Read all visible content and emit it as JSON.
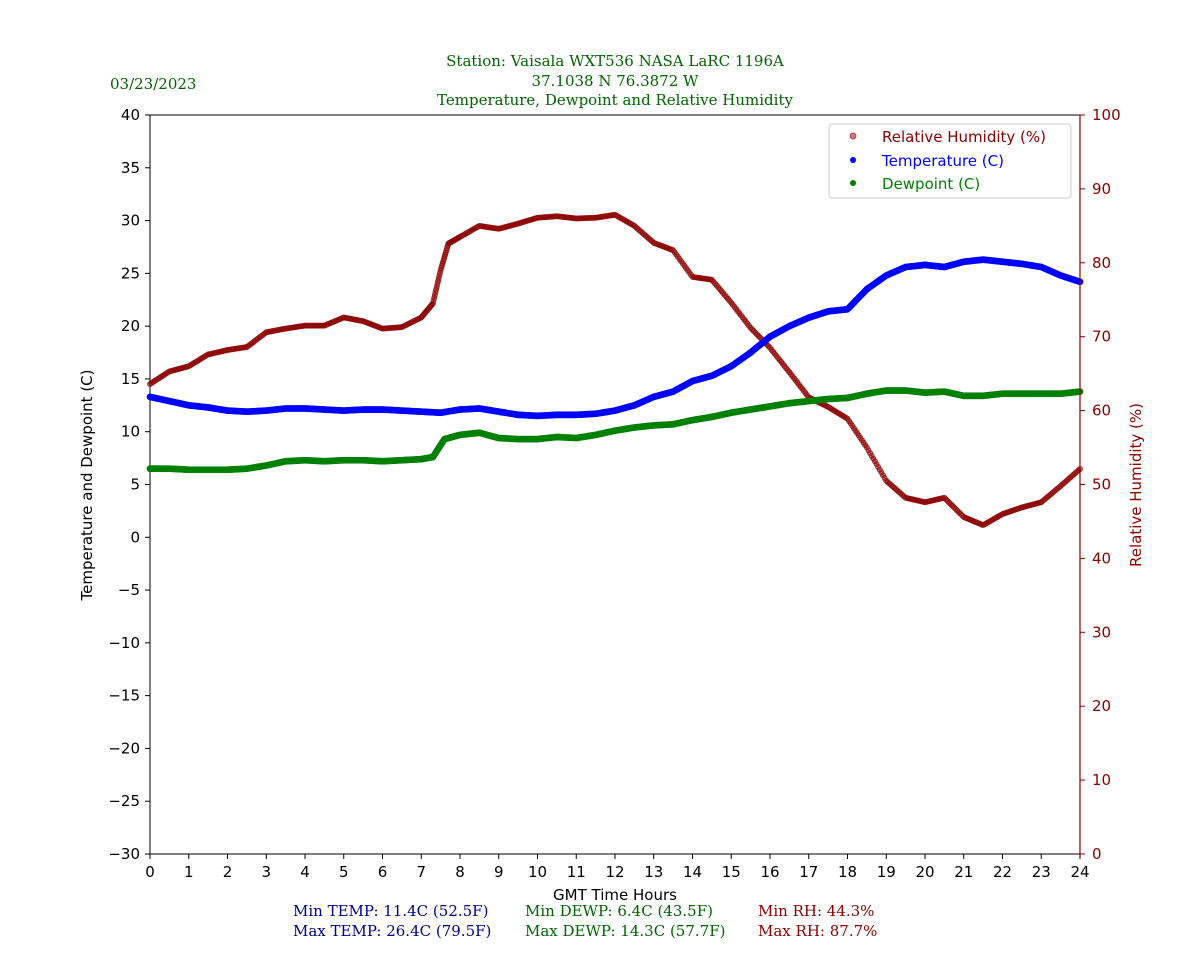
{
  "chart_data": {
    "type": "scatter",
    "date": "03/23/2023",
    "title_lines": [
      "Station:  Vaisala WXT536  NASA LaRC 1196A",
      "37.1038 N 76.3872 W",
      "Temperature, Dewpoint and Relative Humidity"
    ],
    "xlabel": "GMT Time Hours",
    "ylabel_left": "Temperature and Dewpoint (C)",
    "ylabel_right": "Relative Humidity (%)",
    "xlim": [
      0,
      24
    ],
    "ylim_left": [
      -30,
      40
    ],
    "ylim_right": [
      0,
      100
    ],
    "x_ticks": [
      0,
      1,
      2,
      3,
      4,
      5,
      6,
      7,
      8,
      9,
      10,
      11,
      12,
      13,
      14,
      15,
      16,
      17,
      18,
      19,
      20,
      21,
      22,
      23,
      24
    ],
    "y_ticks_left": [
      40,
      35,
      30,
      25,
      20,
      15,
      10,
      5,
      0,
      -5,
      -10,
      -15,
      -20,
      -25,
      -30
    ],
    "y_ticks_left_labels": [
      "40",
      "35",
      "30",
      "25",
      "20",
      "15",
      "10",
      "5",
      "0",
      "−5",
      "−10",
      "−15",
      "−20",
      "−25",
      "−30"
    ],
    "y_ticks_right": [
      100,
      90,
      80,
      70,
      60,
      50,
      40,
      30,
      20,
      10,
      0
    ],
    "legend": {
      "position": "top-right",
      "entries": [
        {
          "label": "Relative Humidity (%)",
          "color": "#8b0000"
        },
        {
          "label": "Temperature (C)",
          "color": "#0000ff"
        },
        {
          "label": "Dewpoint (C)",
          "color": "#008000"
        }
      ]
    },
    "series": [
      {
        "name": "Temperature (C)",
        "axis": "left",
        "color": "#0000ff",
        "points": [
          [
            0,
            13.3
          ],
          [
            0.5,
            12.9
          ],
          [
            1,
            12.5
          ],
          [
            1.5,
            12.3
          ],
          [
            2,
            12.0
          ],
          [
            2.5,
            11.9
          ],
          [
            3,
            12.0
          ],
          [
            3.5,
            12.2
          ],
          [
            4,
            12.2
          ],
          [
            4.5,
            12.1
          ],
          [
            5,
            12.0
          ],
          [
            5.5,
            12.1
          ],
          [
            6,
            12.1
          ],
          [
            6.5,
            12.0
          ],
          [
            7,
            11.9
          ],
          [
            7.5,
            11.8
          ],
          [
            8,
            12.1
          ],
          [
            8.5,
            12.2
          ],
          [
            9,
            11.9
          ],
          [
            9.5,
            11.6
          ],
          [
            10,
            11.5
          ],
          [
            10.5,
            11.6
          ],
          [
            11,
            11.6
          ],
          [
            11.5,
            11.7
          ],
          [
            12,
            12.0
          ],
          [
            12.5,
            12.5
          ],
          [
            13,
            13.3
          ],
          [
            13.5,
            13.8
          ],
          [
            14,
            14.8
          ],
          [
            14.5,
            15.3
          ],
          [
            15,
            16.2
          ],
          [
            15.5,
            17.5
          ],
          [
            16,
            19.0
          ],
          [
            16.5,
            20.0
          ],
          [
            17,
            20.8
          ],
          [
            17.5,
            21.4
          ],
          [
            18,
            21.6
          ],
          [
            18.5,
            23.5
          ],
          [
            19,
            24.8
          ],
          [
            19.5,
            25.6
          ],
          [
            20,
            25.8
          ],
          [
            20.5,
            25.6
          ],
          [
            21,
            26.1
          ],
          [
            21.5,
            26.3
          ],
          [
            22,
            26.1
          ],
          [
            22.5,
            25.9
          ],
          [
            23,
            25.6
          ],
          [
            23.5,
            24.8
          ],
          [
            24,
            24.2
          ]
        ]
      },
      {
        "name": "Dewpoint (C)",
        "axis": "left",
        "color": "#008000",
        "points": [
          [
            0,
            6.5
          ],
          [
            0.5,
            6.5
          ],
          [
            1,
            6.4
          ],
          [
            1.5,
            6.4
          ],
          [
            2,
            6.4
          ],
          [
            2.5,
            6.5
          ],
          [
            3,
            6.8
          ],
          [
            3.5,
            7.2
          ],
          [
            4,
            7.3
          ],
          [
            4.5,
            7.2
          ],
          [
            5,
            7.3
          ],
          [
            5.5,
            7.3
          ],
          [
            6,
            7.2
          ],
          [
            6.5,
            7.3
          ],
          [
            7,
            7.4
          ],
          [
            7.3,
            7.6
          ],
          [
            7.6,
            9.3
          ],
          [
            8,
            9.7
          ],
          [
            8.5,
            9.9
          ],
          [
            9,
            9.4
          ],
          [
            9.5,
            9.3
          ],
          [
            10,
            9.3
          ],
          [
            10.5,
            9.5
          ],
          [
            11,
            9.4
          ],
          [
            11.5,
            9.7
          ],
          [
            12,
            10.1
          ],
          [
            12.5,
            10.4
          ],
          [
            13,
            10.6
          ],
          [
            13.5,
            10.7
          ],
          [
            14,
            11.1
          ],
          [
            14.5,
            11.4
          ],
          [
            15,
            11.8
          ],
          [
            15.5,
            12.1
          ],
          [
            16,
            12.4
          ],
          [
            16.5,
            12.7
          ],
          [
            17,
            12.9
          ],
          [
            17.5,
            13.1
          ],
          [
            18,
            13.2
          ],
          [
            18.5,
            13.6
          ],
          [
            19,
            13.9
          ],
          [
            19.5,
            13.9
          ],
          [
            20,
            13.7
          ],
          [
            20.5,
            13.8
          ],
          [
            21,
            13.4
          ],
          [
            21.5,
            13.4
          ],
          [
            22,
            13.6
          ],
          [
            22.5,
            13.6
          ],
          [
            23,
            13.6
          ],
          [
            23.5,
            13.6
          ],
          [
            24,
            13.8
          ]
        ]
      },
      {
        "name": "Relative Humidity (%)",
        "axis": "right",
        "color": "#8b0000",
        "points": [
          [
            0,
            63.6
          ],
          [
            0.5,
            65.3
          ],
          [
            1,
            66.0
          ],
          [
            1.5,
            67.6
          ],
          [
            2,
            68.2
          ],
          [
            2.5,
            68.6
          ],
          [
            3,
            70.6
          ],
          [
            3.5,
            71.1
          ],
          [
            4,
            71.5
          ],
          [
            4.5,
            71.5
          ],
          [
            5,
            72.6
          ],
          [
            5.5,
            72.1
          ],
          [
            6,
            71.1
          ],
          [
            6.5,
            71.3
          ],
          [
            7,
            72.6
          ],
          [
            7.3,
            74.5
          ],
          [
            7.5,
            79.0
          ],
          [
            7.7,
            82.6
          ],
          [
            8,
            83.5
          ],
          [
            8.5,
            85.0
          ],
          [
            9,
            84.6
          ],
          [
            9.5,
            85.3
          ],
          [
            10,
            86.1
          ],
          [
            10.5,
            86.3
          ],
          [
            11,
            86.0
          ],
          [
            11.5,
            86.1
          ],
          [
            12,
            86.5
          ],
          [
            12.5,
            85.0
          ],
          [
            13,
            82.7
          ],
          [
            13.5,
            81.7
          ],
          [
            14,
            78.1
          ],
          [
            14.5,
            77.7
          ],
          [
            15,
            74.6
          ],
          [
            15.5,
            71.2
          ],
          [
            16,
            68.5
          ],
          [
            16.5,
            65.2
          ],
          [
            17,
            61.8
          ],
          [
            17.5,
            60.5
          ],
          [
            18,
            58.9
          ],
          [
            18.5,
            55.0
          ],
          [
            19,
            50.5
          ],
          [
            19.5,
            48.2
          ],
          [
            20,
            47.6
          ],
          [
            20.5,
            48.2
          ],
          [
            21,
            45.6
          ],
          [
            21.5,
            44.5
          ],
          [
            22,
            46.0
          ],
          [
            22.5,
            46.9
          ],
          [
            23,
            47.6
          ],
          [
            23.5,
            49.8
          ],
          [
            24,
            52.1
          ]
        ]
      }
    ]
  },
  "summary": {
    "temp_min": "Min TEMP: 11.4C (52.5F)",
    "temp_max": "Max TEMP: 26.4C (79.5F)",
    "dewp_min": "Min DEWP: 6.4C (43.5F)",
    "dewp_max": "Max DEWP: 14.3C (57.7F)",
    "rh_min": "Min RH: 44.3%",
    "rh_max": "Max RH: 87.7%"
  },
  "colors": {
    "title": "#006400",
    "temp_summary": "#00008b",
    "dewp_summary": "#006400",
    "rh_summary": "#8b0000",
    "rh_axis": "#8b0000",
    "temperature": "#0000ff",
    "dewpoint": "#008000"
  }
}
